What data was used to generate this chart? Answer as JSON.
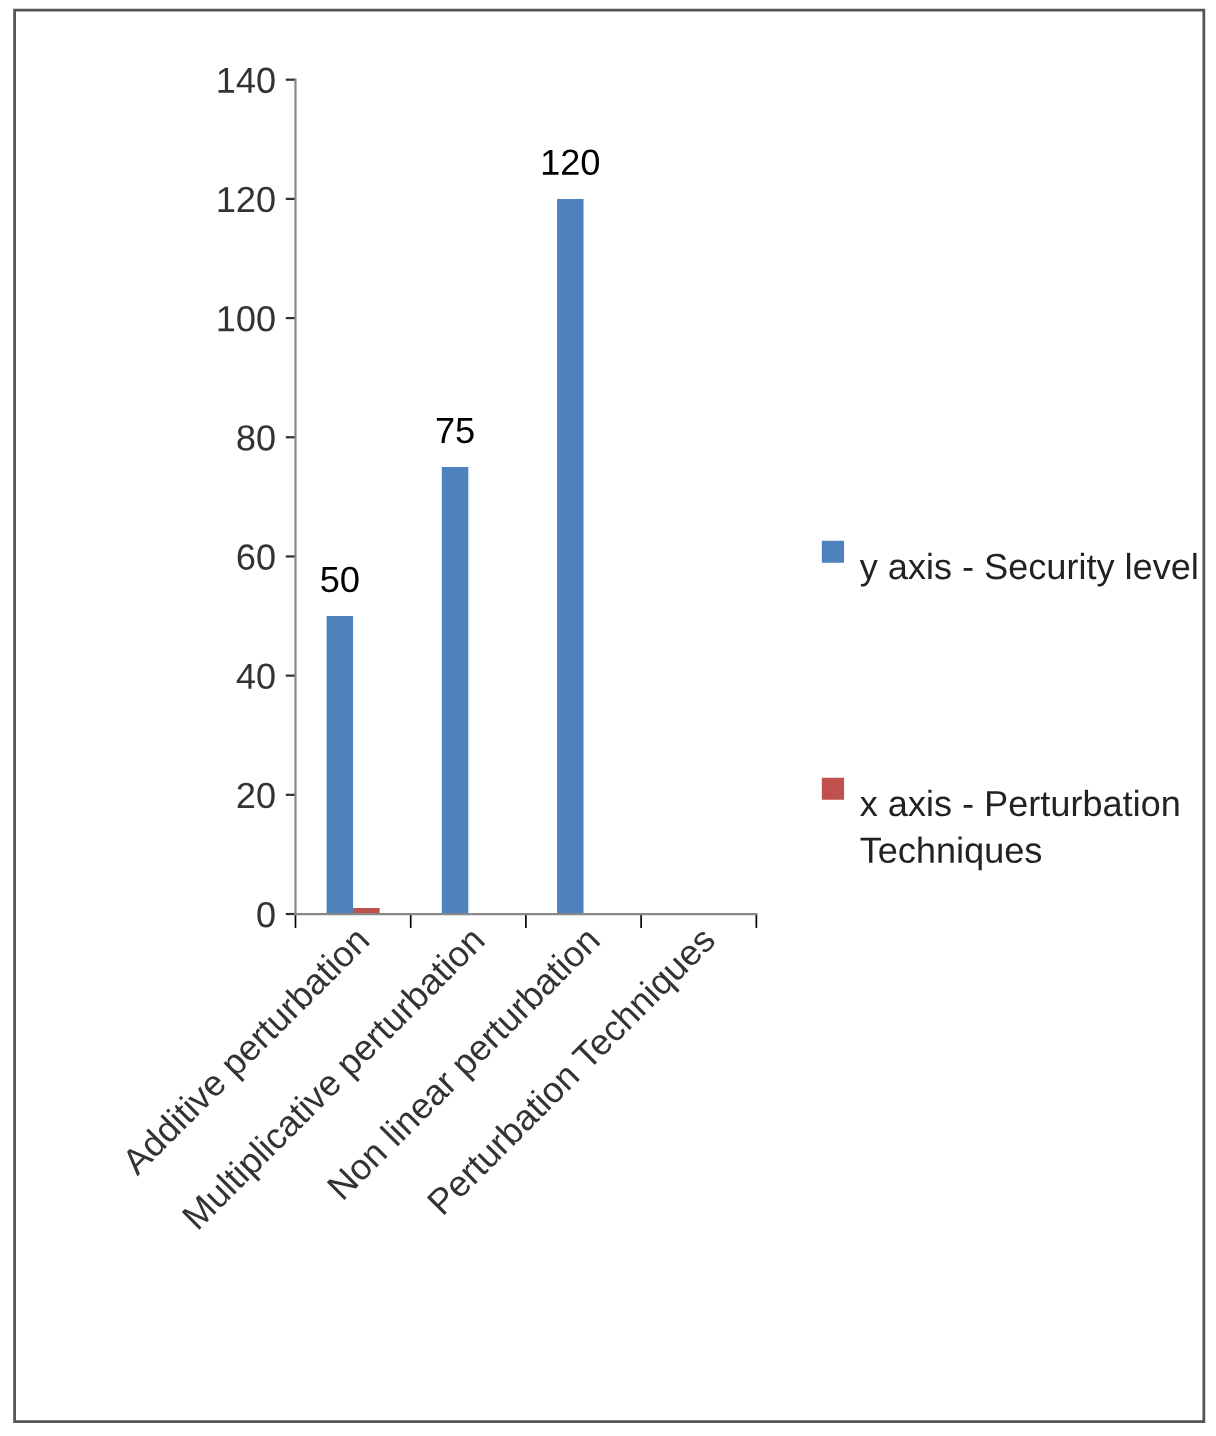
{
  "chart_data": {
    "type": "bar",
    "categories": [
      "Additive perturbation",
      "Multiplicative perturbation",
      "Non linear perturbation",
      "Perturbation Techniques"
    ],
    "series": [
      {
        "name": "y axis - Security level",
        "color": "#4f81bd",
        "values": [
          50,
          75,
          120,
          null
        ],
        "value_labels": [
          "50",
          "75",
          "120",
          null
        ]
      },
      {
        "name": "x axis - Perturbation Techniques",
        "color": "#c0504d",
        "values": [
          1,
          null,
          null,
          null
        ]
      }
    ],
    "ylim": [
      0,
      140
    ],
    "yticks": [
      0,
      20,
      40,
      60,
      80,
      100,
      120,
      140
    ],
    "grid": false,
    "legend": "right"
  }
}
